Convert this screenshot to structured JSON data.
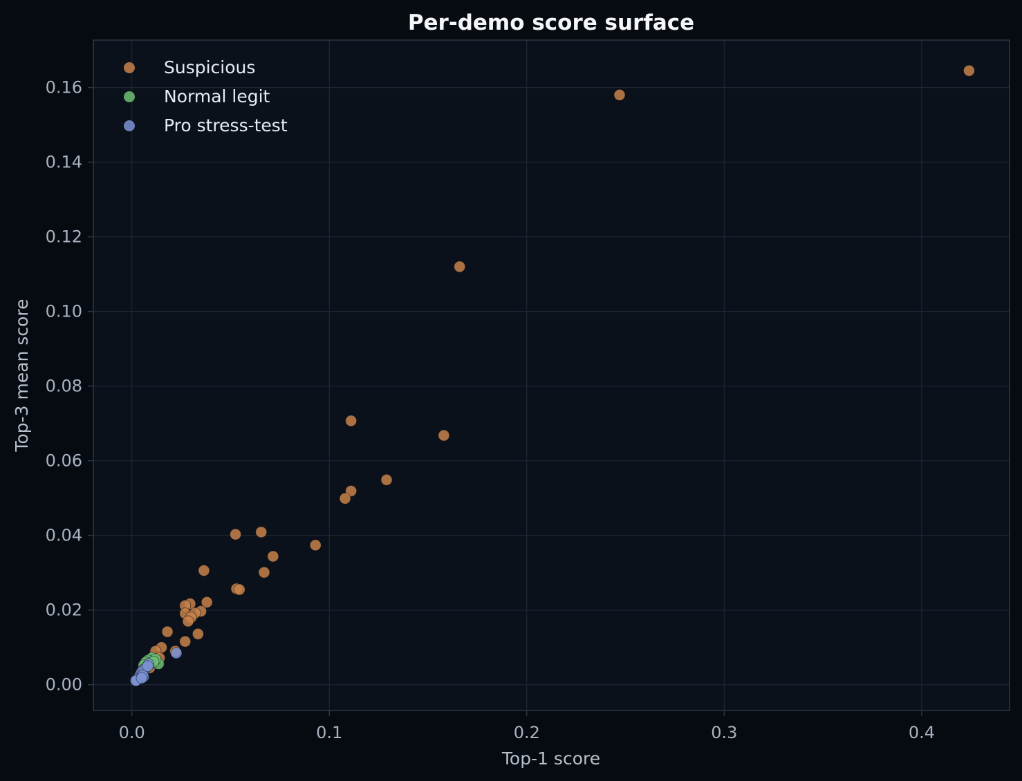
{
  "chart_data": {
    "type": "scatter",
    "title": "Per-demo score surface",
    "xlabel": "Top-1 score",
    "ylabel": "Top-3 mean score",
    "xlim": [
      -0.0195,
      0.4445
    ],
    "ylim": [
      -0.0069,
      0.1727
    ],
    "xticks": [
      0.0,
      0.1,
      0.2,
      0.3,
      0.4
    ],
    "xtick_labels": [
      "0.0",
      "0.1",
      "0.2",
      "0.3",
      "0.4"
    ],
    "yticks": [
      0.0,
      0.02,
      0.04,
      0.06,
      0.08,
      0.1,
      0.12,
      0.14,
      0.16
    ],
    "ytick_labels": [
      "0.00",
      "0.02",
      "0.04",
      "0.06",
      "0.08",
      "0.10",
      "0.12",
      "0.14",
      "0.16"
    ],
    "grid": true,
    "legend_position": "top-left",
    "colors": {
      "background": "#060a11",
      "plot_background": "#0a111b",
      "grid": "#1e2733",
      "spine": "#2e3744"
    },
    "series": [
      {
        "name": "Suspicious",
        "color": "#c8824a",
        "points": [
          [
            0.424,
            0.1645
          ],
          [
            0.247,
            0.158
          ],
          [
            0.166,
            0.112
          ],
          [
            0.111,
            0.0707
          ],
          [
            0.158,
            0.0668
          ],
          [
            0.129,
            0.0549
          ],
          [
            0.111,
            0.0519
          ],
          [
            0.108,
            0.0499
          ],
          [
            0.0525,
            0.0403
          ],
          [
            0.0655,
            0.0409
          ],
          [
            0.093,
            0.0374
          ],
          [
            0.0715,
            0.0344
          ],
          [
            0.0365,
            0.0306
          ],
          [
            0.067,
            0.0301
          ],
          [
            0.053,
            0.0257
          ],
          [
            0.0545,
            0.0255
          ],
          [
            0.038,
            0.0221
          ],
          [
            0.0295,
            0.0217
          ],
          [
            0.027,
            0.0212
          ],
          [
            0.035,
            0.0197
          ],
          [
            0.027,
            0.0191
          ],
          [
            0.032,
            0.0192
          ],
          [
            0.03,
            0.018
          ],
          [
            0.0285,
            0.017
          ],
          [
            0.018,
            0.0142
          ],
          [
            0.0335,
            0.0136
          ],
          [
            0.027,
            0.0116
          ],
          [
            0.015,
            0.01
          ],
          [
            0.022,
            0.009
          ],
          [
            0.012,
            0.009
          ],
          [
            0.014,
            0.0072
          ],
          [
            0.009,
            0.0045
          ],
          [
            0.011,
            0.006
          ]
        ]
      },
      {
        "name": "Normal legit",
        "color": "#6fbf73",
        "points": [
          [
            0.0135,
            0.0056
          ],
          [
            0.01,
            0.0072
          ],
          [
            0.008,
            0.0065
          ],
          [
            0.007,
            0.006
          ],
          [
            0.012,
            0.0068
          ],
          [
            0.009,
            0.0058
          ],
          [
            0.006,
            0.0052
          ],
          [
            0.011,
            0.0062
          ]
        ]
      },
      {
        "name": "Pro stress-test",
        "color": "#7b93d4",
        "points": [
          [
            0.0225,
            0.0085
          ],
          [
            0.0085,
            0.0055
          ],
          [
            0.007,
            0.0045
          ],
          [
            0.006,
            0.004
          ],
          [
            0.005,
            0.0035
          ],
          [
            0.0045,
            0.003
          ],
          [
            0.004,
            0.0025
          ],
          [
            0.006,
            0.0022
          ],
          [
            0.0035,
            0.002
          ],
          [
            0.003,
            0.0015
          ],
          [
            0.0025,
            0.0012
          ],
          [
            0.002,
            0.0011
          ],
          [
            0.0055,
            0.0025
          ],
          [
            0.005,
            0.0018
          ],
          [
            0.008,
            0.005
          ]
        ]
      }
    ]
  }
}
